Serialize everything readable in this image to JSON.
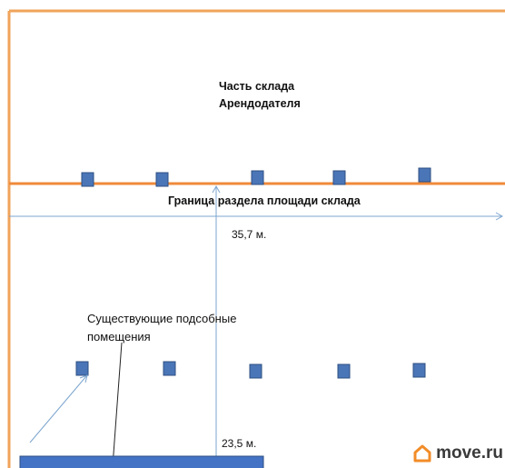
{
  "labels": {
    "landlord_part_line1": "Часть склада",
    "landlord_part_line2": "Арендодателя",
    "boundary": "Граница раздела площади склада",
    "width_dimension": "35,7 м.",
    "existing_rooms": "Существующие подсобные помещения",
    "depth_dimension": "23,5 м."
  },
  "watermark": {
    "text": "move.ru",
    "icon": "house-icon"
  },
  "colors": {
    "wall": "#f0a35a",
    "boundary_line": "#ef8a3a",
    "column": "#4a76b8",
    "dimension_line": "#7ca5cf",
    "bottom_bar": "#4472c4",
    "logo_accent": "#f28c28"
  }
}
